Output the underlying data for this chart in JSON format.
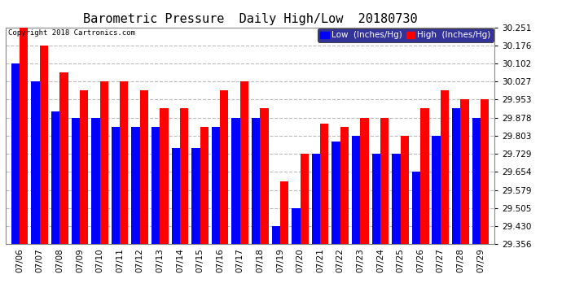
{
  "title": "Barometric Pressure  Daily High/Low  20180730",
  "copyright": "Copyright 2018 Cartronics.com",
  "legend_low": "Low  (Inches/Hg)",
  "legend_high": "High  (Inches/Hg)",
  "dates": [
    "07/06",
    "07/07",
    "07/08",
    "07/09",
    "07/10",
    "07/11",
    "07/12",
    "07/13",
    "07/14",
    "07/15",
    "07/16",
    "07/17",
    "07/18",
    "07/19",
    "07/20",
    "07/21",
    "07/22",
    "07/23",
    "07/24",
    "07/25",
    "07/26",
    "07/27",
    "07/28",
    "07/29"
  ],
  "low_values": [
    30.102,
    30.027,
    29.903,
    29.878,
    29.878,
    29.84,
    29.84,
    29.84,
    29.753,
    29.753,
    29.84,
    29.878,
    29.878,
    29.43,
    29.505,
    29.729,
    29.78,
    29.803,
    29.729,
    29.729,
    29.654,
    29.803,
    29.916,
    29.878
  ],
  "high_values": [
    30.251,
    30.176,
    30.065,
    29.99,
    30.027,
    30.027,
    29.99,
    29.916,
    29.916,
    29.84,
    29.99,
    30.027,
    29.916,
    29.616,
    29.729,
    29.853,
    29.84,
    29.878,
    29.878,
    29.803,
    29.916,
    29.99,
    29.953,
    29.953
  ],
  "ylim_min": 29.356,
  "ylim_max": 30.251,
  "yticks": [
    29.356,
    29.43,
    29.505,
    29.579,
    29.654,
    29.729,
    29.803,
    29.878,
    29.953,
    30.027,
    30.102,
    30.176,
    30.251
  ],
  "low_color": "#0000ff",
  "high_color": "#ff0000",
  "bg_color": "#ffffff",
  "plot_bg_color": "#ffffff",
  "grid_color": "#bbbbbb",
  "title_fontsize": 11,
  "tick_fontsize": 7.5,
  "legend_fontsize": 7.5,
  "bar_width": 0.42
}
